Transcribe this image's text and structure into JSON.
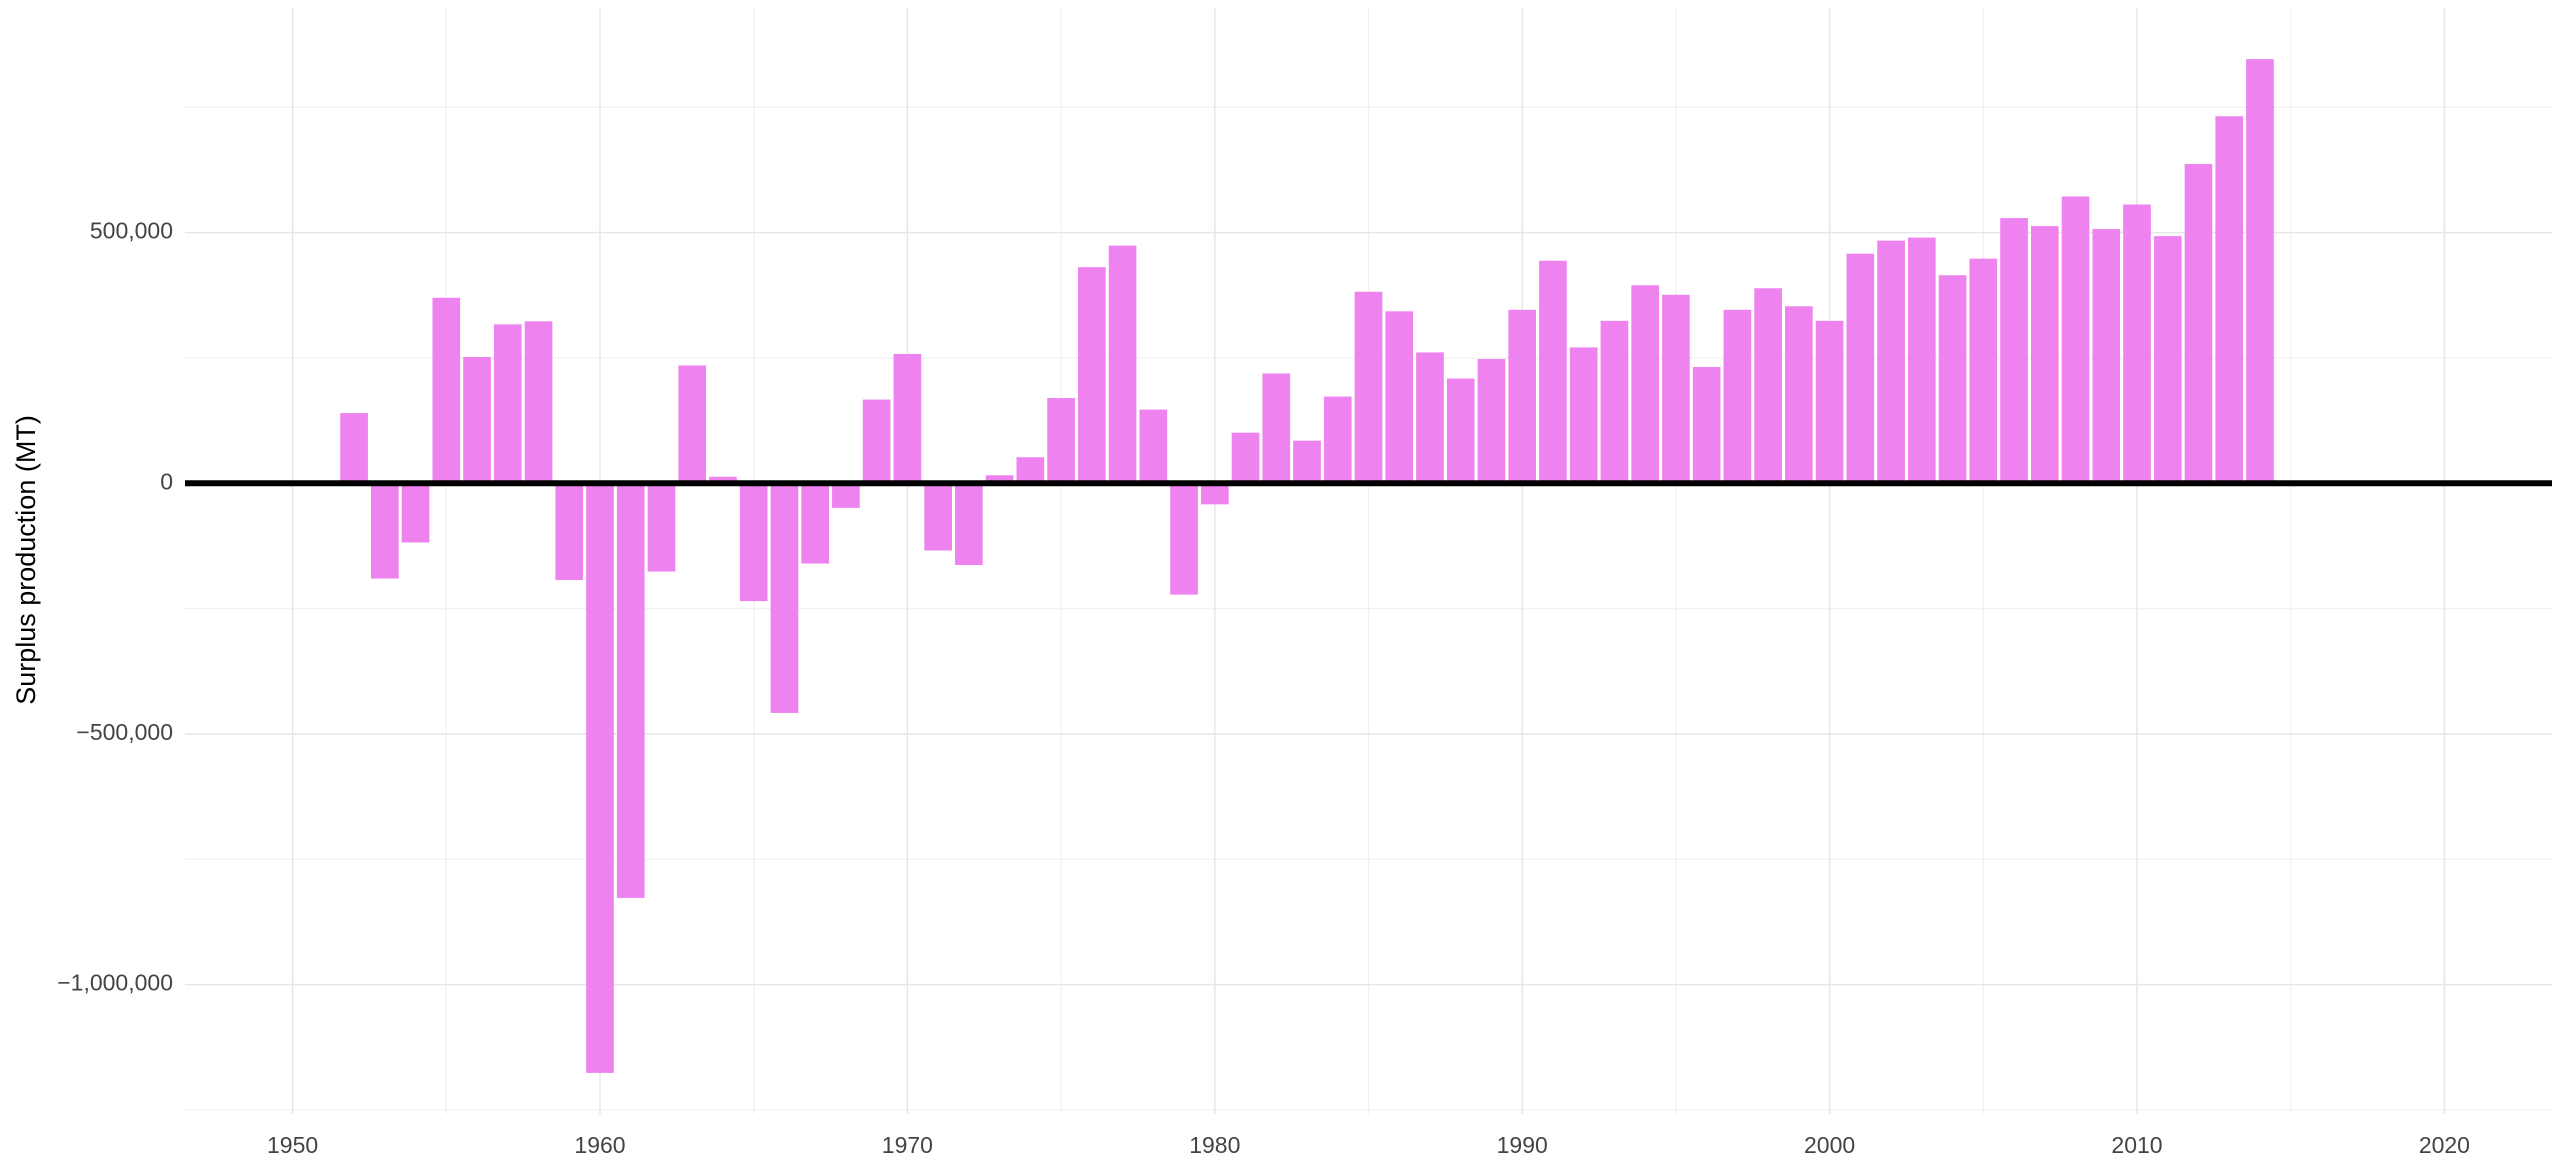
{
  "chart_data": {
    "type": "bar",
    "y_label": "Surplus production (MT)",
    "x": [
      1952,
      1953,
      1954,
      1955,
      1956,
      1957,
      1958,
      1959,
      1960,
      1961,
      1962,
      1963,
      1964,
      1965,
      1966,
      1967,
      1968,
      1969,
      1970,
      1971,
      1972,
      1973,
      1974,
      1975,
      1976,
      1977,
      1978,
      1979,
      1980,
      1981,
      1982,
      1983,
      1984,
      1985,
      1986,
      1987,
      1988,
      1989,
      1990,
      1991,
      1992,
      1993,
      1994,
      1995,
      1996,
      1997,
      1998,
      1999,
      2000,
      2001,
      2002,
      2003,
      2004,
      2005,
      2006,
      2007,
      2008,
      2009,
      2010,
      2011,
      2012,
      2013,
      2014
    ],
    "values": [
      140000,
      -190000,
      -118000,
      370000,
      252000,
      317000,
      323000,
      -193000,
      -1176000,
      -827000,
      -176000,
      235000,
      13000,
      -235000,
      -458000,
      -160000,
      -49000,
      167000,
      258000,
      -134000,
      -163000,
      16000,
      52000,
      170000,
      431000,
      474000,
      147000,
      -222000,
      -42000,
      101000,
      219000,
      85000,
      173000,
      382000,
      343000,
      261000,
      209000,
      248000,
      346000,
      444000,
      271000,
      324000,
      395000,
      376000,
      232000,
      346000,
      389000,
      353000,
      324000,
      458000,
      484000,
      490000,
      415000,
      448000,
      529000,
      513000,
      572000,
      507000,
      556000,
      493000,
      637000,
      732000,
      846000
    ],
    "color": "#ee82ee",
    "xlim": [
      1946.5,
      2023.5
    ],
    "xticks": [
      1950,
      1960,
      1970,
      1980,
      1990,
      2000,
      2010,
      2020
    ],
    "ylim": [
      -1258000,
      948000
    ],
    "yticks": [
      {
        "value": -1000000,
        "label": "−1,000,000"
      },
      {
        "value": -500000,
        "label": "−500,000"
      },
      0,
      {
        "value": 500000,
        "label": "500,000"
      }
    ],
    "grid": true,
    "zero_line": true
  }
}
